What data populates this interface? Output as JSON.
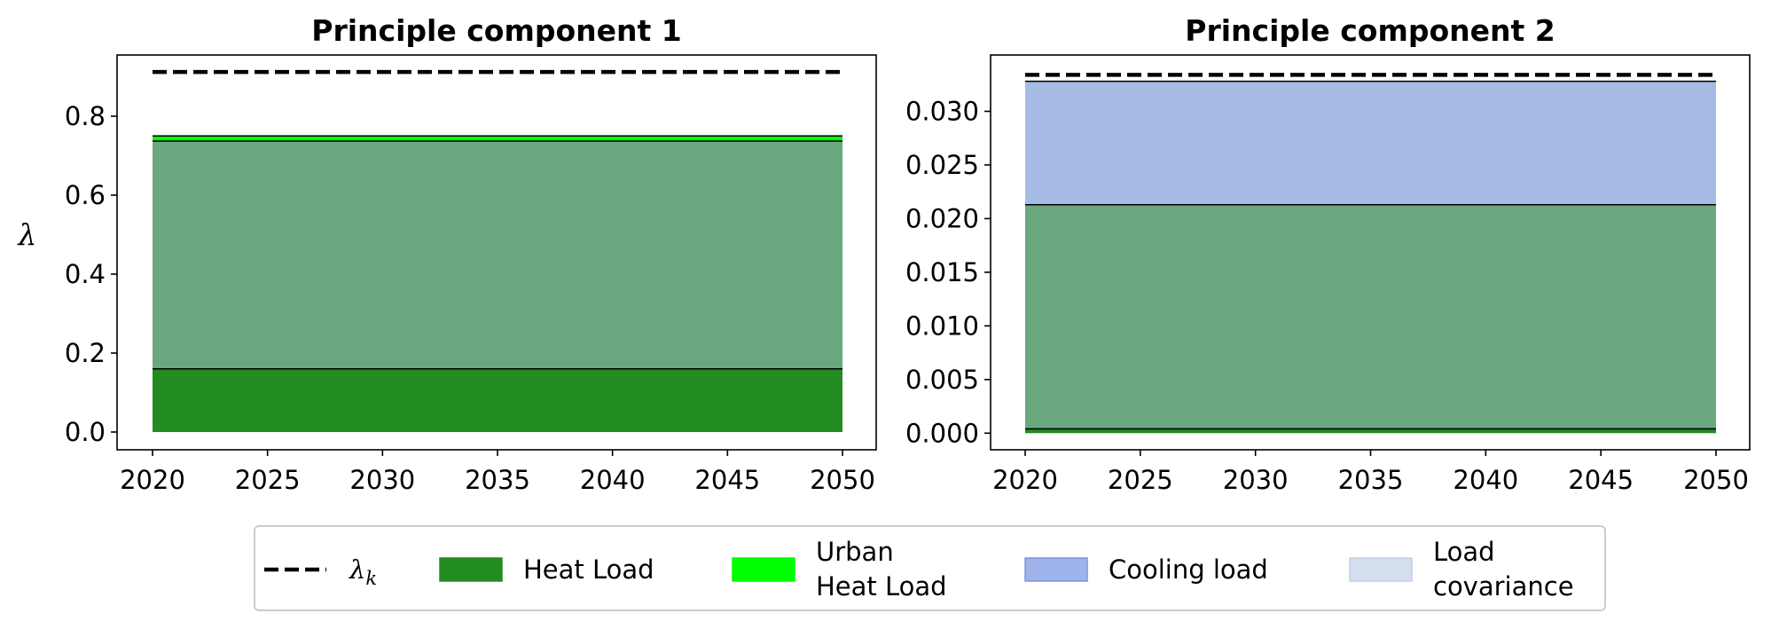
{
  "chart_data": [
    {
      "type": "area",
      "title": "Principle component 1",
      "ylabel": "λ",
      "xlim": [
        2020,
        2050
      ],
      "ylim": [
        -0.045,
        0.955
      ],
      "xticks": [
        "2020",
        "2025",
        "2030",
        "2035",
        "2040",
        "2045",
        "2050"
      ],
      "yticks": [
        "0.0",
        "0.2",
        "0.4",
        "0.6",
        "0.8"
      ],
      "x": [
        2020,
        2050
      ],
      "lambda_k": 0.912,
      "stack": [
        {
          "series": "Heat Load",
          "from": 0.0,
          "to": 0.16
        },
        {
          "series": "Load covariance",
          "from": 0.16,
          "to": 0.737
        },
        {
          "series": "Urban Heat Load",
          "from": 0.737,
          "to": 0.75
        },
        {
          "series": "Cooling load",
          "from": 0.75,
          "to": 0.752
        }
      ]
    },
    {
      "type": "area",
      "title": "Principle component 2",
      "ylabel": "",
      "xlim": [
        2020,
        2050
      ],
      "ylim": [
        -0.00155,
        0.03525
      ],
      "xticks": [
        "2020",
        "2025",
        "2030",
        "2035",
        "2040",
        "2045",
        "2050"
      ],
      "yticks": [
        "0.000",
        "0.005",
        "0.010",
        "0.015",
        "0.020",
        "0.025",
        "0.030"
      ],
      "x": [
        2020,
        2050
      ],
      "lambda_k": 0.0334,
      "stack": [
        {
          "series": "Heat Load",
          "from": 0.0,
          "to": 0.0004
        },
        {
          "series": "Load covariance",
          "from": 0.0004,
          "to": 0.0213
        },
        {
          "series": "Cooling load",
          "from": 0.0213,
          "to": 0.0328
        }
      ]
    }
  ],
  "legend": {
    "placement": "bottom",
    "entries": [
      {
        "key": "lambda",
        "label": "λ",
        "sub": "k",
        "style": "dashed-line",
        "color": "#000000"
      },
      {
        "key": "heat",
        "label": "Heat Load",
        "style": "patch",
        "color": "#228b22"
      },
      {
        "key": "urban",
        "label": "Urban",
        "label2": "Heat Load",
        "style": "patch",
        "color": "#00ff00"
      },
      {
        "key": "cooling",
        "label": "Cooling load",
        "style": "patch",
        "color": "#a0b4ec"
      },
      {
        "key": "covariance",
        "label": "Load",
        "label2": "covariance",
        "style": "patch",
        "color": "#d4deec"
      }
    ]
  },
  "colors": {
    "Heat Load": "#228b22",
    "Urban Heat Load": "#00ff00",
    "Cooling load": "#a7bbe7",
    "Load covariance": "#6aa880",
    "lambda_k": "#000000"
  }
}
